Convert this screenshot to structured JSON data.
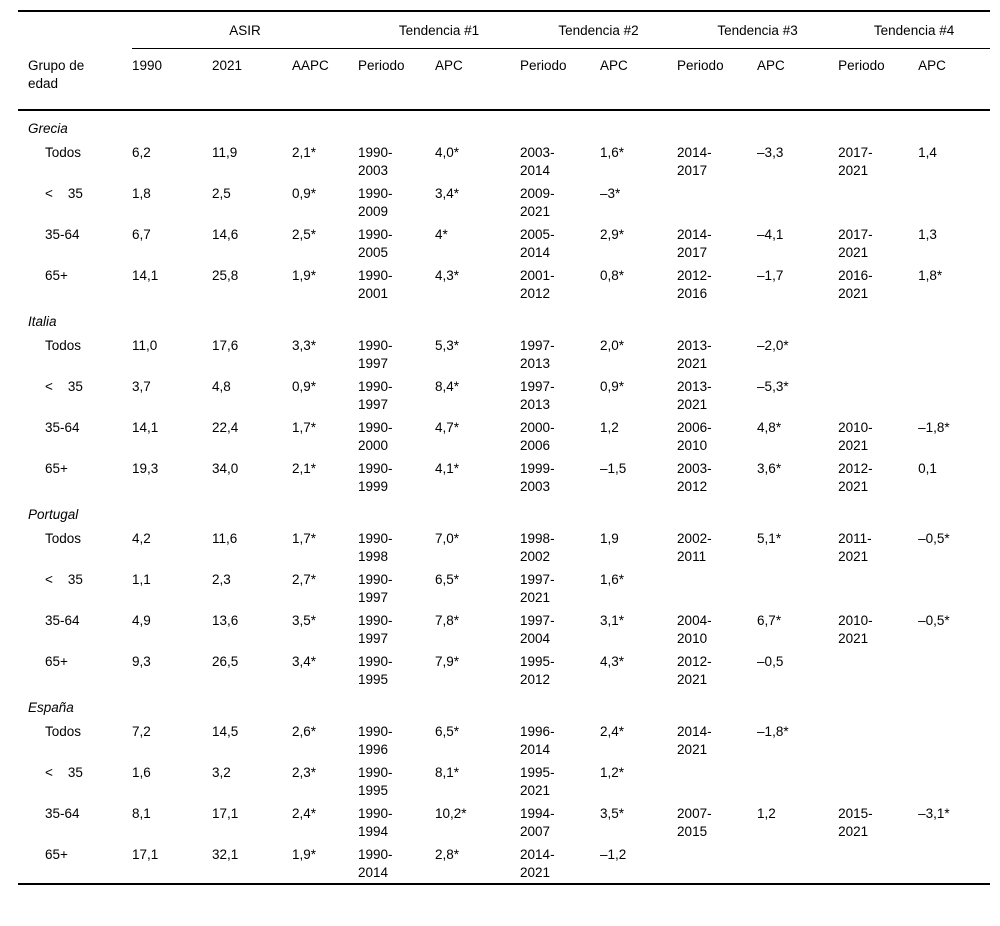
{
  "table": {
    "header": {
      "row_group_label": "Grupo de\nedad",
      "spanners": [
        {
          "label": "ASIR",
          "span": 3
        },
        {
          "label": "Tendencia #1",
          "span": 2
        },
        {
          "label": "Tendencia #2",
          "span": 2
        },
        {
          "label": "Tendencia #3",
          "span": 2
        },
        {
          "label": "Tendencia #4",
          "span": 2
        }
      ],
      "columns": [
        "1990",
        "2021",
        "AAPC",
        "Periodo",
        "APC",
        "Periodo",
        "APC",
        "Periodo",
        "APC",
        "Periodo",
        "APC"
      ]
    },
    "groups": [
      {
        "country": "Grecia",
        "rows": [
          {
            "label": "Todos",
            "cells": [
              "6,2",
              "11,9",
              "2,1*",
              "1990-\n2003",
              "4,0*",
              "2003-\n2014",
              "1,6*",
              "2014-\n2017",
              "–3,3",
              "2017-\n2021",
              "1,4"
            ]
          },
          {
            "label": "<    35",
            "cells": [
              "1,8",
              "2,5",
              "0,9*",
              "1990-\n2009",
              "3,4*",
              "2009-\n2021",
              "–3*",
              "",
              "",
              "",
              ""
            ]
          },
          {
            "label": "35-64",
            "cells": [
              "6,7",
              "14,6",
              "2,5*",
              "1990-\n2005",
              "4*",
              "2005-\n2014",
              "2,9*",
              "2014-\n2017",
              "–4,1",
              "2017-\n2021",
              "1,3"
            ]
          },
          {
            "label": "65+",
            "cells": [
              "14,1",
              "25,8",
              "1,9*",
              "1990-\n2001",
              "4,3*",
              "2001-\n2012",
              "0,8*",
              "2012-\n2016",
              "–1,7",
              "2016-\n2021",
              "1,8*"
            ]
          }
        ]
      },
      {
        "country": "Italia",
        "rows": [
          {
            "label": "Todos",
            "cells": [
              "11,0",
              "17,6",
              "3,3*",
              "1990-\n1997",
              "5,3*",
              "1997-\n2013",
              "2,0*",
              "2013-\n2021",
              "–2,0*",
              "",
              ""
            ]
          },
          {
            "label": "<    35",
            "cells": [
              "3,7",
              "4,8",
              "0,9*",
              "1990-\n1997",
              "8,4*",
              "1997-\n2013",
              "0,9*",
              "2013-\n2021",
              "–5,3*",
              "",
              ""
            ]
          },
          {
            "label": "35-64",
            "cells": [
              "14,1",
              "22,4",
              "1,7*",
              "1990-\n2000",
              "4,7*",
              "2000-\n2006",
              "1,2",
              "2006-\n2010",
              "4,8*",
              "2010-\n2021",
              "–1,8*"
            ]
          },
          {
            "label": "65+",
            "cells": [
              "19,3",
              "34,0",
              "2,1*",
              "1990-\n1999",
              "4,1*",
              "1999-\n2003",
              "–1,5",
              "2003-\n2012",
              "3,6*",
              "2012-\n2021",
              "0,1"
            ]
          }
        ]
      },
      {
        "country": "Portugal",
        "rows": [
          {
            "label": "Todos",
            "cells": [
              "4,2",
              "11,6",
              "1,7*",
              "1990-\n1998",
              "7,0*",
              "1998-\n2002",
              "1,9",
              "2002-\n2011",
              "5,1*",
              "2011-\n2021",
              "–0,5*"
            ]
          },
          {
            "label": "<    35",
            "cells": [
              "1,1",
              "2,3",
              "2,7*",
              "1990-\n1997",
              "6,5*",
              "1997-\n2021",
              "1,6*",
              "",
              "",
              "",
              ""
            ]
          },
          {
            "label": "35-64",
            "cells": [
              "4,9",
              "13,6",
              "3,5*",
              "1990-\n1997",
              "7,8*",
              "1997-\n2004",
              "3,1*",
              "2004-\n2010",
              "6,7*",
              "2010-\n2021",
              "–0,5*"
            ]
          },
          {
            "label": "65+",
            "cells": [
              "9,3",
              "26,5",
              "3,4*",
              "1990-\n1995",
              "7,9*",
              "1995-\n2012",
              "4,3*",
              "2012-\n2021",
              "–0,5",
              "",
              ""
            ]
          }
        ]
      },
      {
        "country": "España",
        "rows": [
          {
            "label": "Todos",
            "cells": [
              "7,2",
              "14,5",
              "2,6*",
              "1990-\n1996",
              "6,5*",
              "1996-\n2014",
              "2,4*",
              "2014-\n2021",
              "–1,8*",
              "",
              ""
            ]
          },
          {
            "label": "<    35",
            "cells": [
              "1,6",
              "3,2",
              "2,3*",
              "1990-\n1995",
              "8,1*",
              "1995-\n2021",
              "1,2*",
              "",
              "",
              "",
              ""
            ]
          },
          {
            "label": "35-64",
            "cells": [
              "8,1",
              "17,1",
              "2,4*",
              "1990-\n1994",
              "10,2*",
              "1994-\n2007",
              "3,5*",
              "2007-\n2015",
              "1,2",
              "2015-\n2021",
              "–3,1*"
            ]
          },
          {
            "label": "65+",
            "cells": [
              "17,1",
              "32,1",
              "1,9*",
              "1990-\n2014",
              "2,8*",
              "2014-\n2021",
              "–1,2",
              "",
              "",
              "",
              ""
            ]
          }
        ]
      }
    ]
  }
}
